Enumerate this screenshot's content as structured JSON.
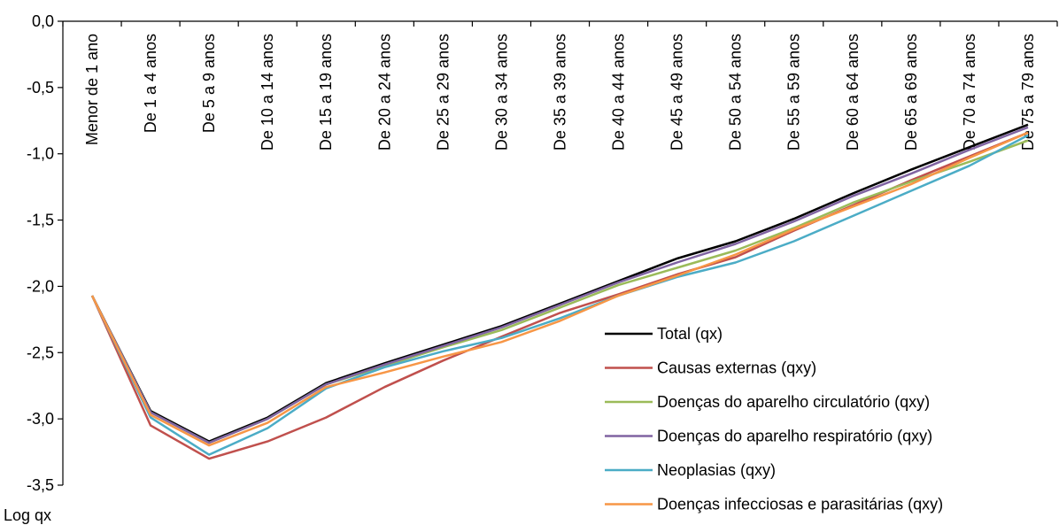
{
  "chart_data": {
    "type": "line",
    "title": "",
    "ylabel": "Log qx",
    "xlabel": "",
    "ylim": [
      -3.5,
      0.0
    ],
    "yticks": [
      "0,0",
      "-0,5",
      "-1,0",
      "-1,5",
      "-2,0",
      "-2,5",
      "-3,0",
      "-3,5"
    ],
    "ytick_values": [
      0.0,
      -0.5,
      -1.0,
      -1.5,
      -2.0,
      -2.5,
      -3.0,
      -3.5
    ],
    "x_axis_position": "top",
    "grid": false,
    "legend_position": "bottom-right",
    "categories": [
      "Menor de 1 ano",
      "De 1 a 4 anos",
      "De 5 a 9 anos",
      "De 10 a 14 anos",
      "De 15 a 19 anos",
      "De 20 a 24 anos",
      "De 25 a 29 anos",
      "De 30 a 34 anos",
      "De 35 a 39 anos",
      "De 40 a 44 anos",
      "De 45 a 49 anos",
      "De 50 a 54 anos",
      "De 55 a 59 anos",
      "De 60 a 64 anos",
      "De 65 a 69 anos",
      "De 70 a 74 anos",
      "De 75 a 79 anos"
    ],
    "series": [
      {
        "name": "Total (qx)",
        "color": "#000000",
        "values": [
          -2.07,
          -2.94,
          -3.17,
          -2.99,
          -2.73,
          -2.58,
          -2.44,
          -2.3,
          -2.13,
          -1.96,
          -1.79,
          -1.66,
          -1.49,
          -1.3,
          -1.12,
          -0.95,
          -0.78
        ]
      },
      {
        "name": "Causas externas (qxy)",
        "color": "#C0504D",
        "values": [
          -2.07,
          -3.05,
          -3.3,
          -3.17,
          -2.99,
          -2.76,
          -2.56,
          -2.38,
          -2.2,
          -2.06,
          -1.91,
          -1.78,
          -1.58,
          -1.39,
          -1.2,
          -1.02,
          -0.84
        ]
      },
      {
        "name": "Doenças do aparelho circulatório (qxy)",
        "color": "#9BBB59",
        "values": [
          -2.07,
          -2.95,
          -3.18,
          -3.0,
          -2.74,
          -2.6,
          -2.46,
          -2.33,
          -2.16,
          -1.99,
          -1.86,
          -1.73,
          -1.56,
          -1.37,
          -1.21,
          -1.06,
          -0.9
        ]
      },
      {
        "name": "Doenças do aparelho respiratório (qxy)",
        "color": "#8064A2",
        "values": [
          -2.07,
          -2.95,
          -3.18,
          -3.0,
          -2.74,
          -2.59,
          -2.45,
          -2.31,
          -2.14,
          -1.97,
          -1.82,
          -1.68,
          -1.51,
          -1.32,
          -1.15,
          -0.97,
          -0.8
        ]
      },
      {
        "name": "Neoplasias (qxy)",
        "color": "#4BACC6",
        "values": [
          -2.07,
          -2.99,
          -3.27,
          -3.07,
          -2.77,
          -2.61,
          -2.49,
          -2.39,
          -2.24,
          -2.07,
          -1.93,
          -1.82,
          -1.66,
          -1.47,
          -1.28,
          -1.09,
          -0.86
        ]
      },
      {
        "name": "Doenças infecciosas e parasitárias (qxy)",
        "color": "#F79646",
        "values": [
          -2.07,
          -2.97,
          -3.2,
          -3.03,
          -2.76,
          -2.65,
          -2.53,
          -2.42,
          -2.26,
          -2.07,
          -1.92,
          -1.76,
          -1.57,
          -1.4,
          -1.23,
          -1.03,
          -0.84
        ]
      }
    ]
  }
}
